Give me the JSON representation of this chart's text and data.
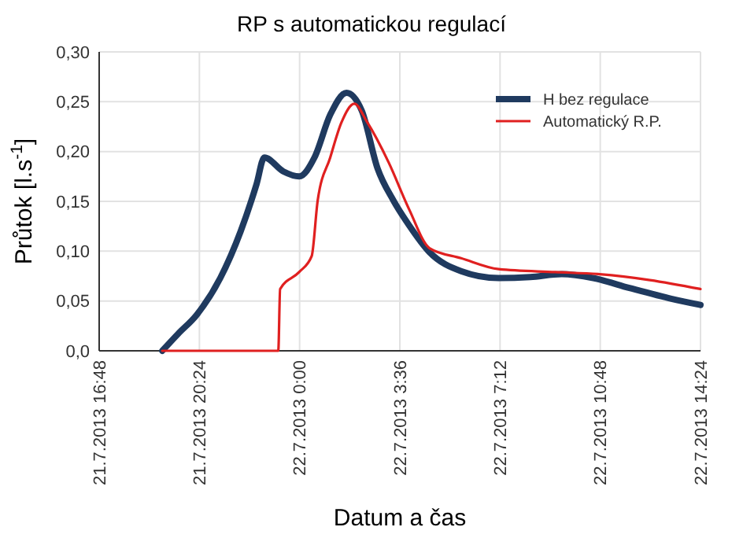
{
  "chart_data": {
    "type": "line",
    "title": "RP s automatickou regulací",
    "xlabel": "Datum a čas",
    "ylabel": "Průtok [l.s$^{-1}$]",
    "xlim": [
      "2013-07-21T16:48",
      "2013-07-22T14:24"
    ],
    "xticks": [
      {
        "value": "2013-07-21T16:48",
        "label": "21.7.2013 16:48"
      },
      {
        "value": "2013-07-21T20:24",
        "label": "21.7.2013 20:24"
      },
      {
        "value": "2013-07-22T00:00",
        "label": "22.7.2013 0:00"
      },
      {
        "value": "2013-07-22T03:36",
        "label": "22.7.2013 3:36"
      },
      {
        "value": "2013-07-22T07:12",
        "label": "22.7.2013 7:12"
      },
      {
        "value": "2013-07-22T10:48",
        "label": "22.7.2013 10:48"
      },
      {
        "value": "2013-07-22T14:24",
        "label": "22.7.2013 14:24"
      }
    ],
    "ylim": [
      0,
      0.3
    ],
    "yticks": [
      {
        "value": 0,
        "label": "0,0"
      },
      {
        "value": 0.05,
        "label": "0,05"
      },
      {
        "value": 0.1,
        "label": "0,10"
      },
      {
        "value": 0.15,
        "label": "0,15"
      },
      {
        "value": 0.2,
        "label": "0,20"
      },
      {
        "value": 0.25,
        "label": "0,25"
      },
      {
        "value": 0.3,
        "label": "0,30"
      }
    ],
    "grid": true,
    "legend": "top right",
    "line_style": "solid",
    "series": [
      {
        "name": "H bez regulace",
        "color": "#1f3a5f",
        "x": [
          "2013-07-21T19:04",
          "2013-07-21T19:38",
          "2013-07-21T20:18",
          "2013-07-21T21:09",
          "2013-07-21T21:53",
          "2013-07-21T22:27",
          "2013-07-21T22:44",
          "2013-07-21T23:25",
          "2013-07-21T23:59",
          "2013-07-22T00:32",
          "2013-07-22T01:06",
          "2013-07-22T01:41",
          "2013-07-22T02:14",
          "2013-07-22T02:48",
          "2013-07-22T03:22",
          "2013-07-22T03:56",
          "2013-07-22T04:40",
          "2013-07-22T05:48",
          "2013-07-22T07:09",
          "2013-07-22T08:17",
          "2013-07-22T09:25",
          "2013-07-22T10:33",
          "2013-07-22T11:51",
          "2013-07-22T13:23",
          "2013-07-22T14:24"
        ],
        "values": [
          0,
          0.017,
          0.036,
          0.073,
          0.12,
          0.167,
          0.194,
          0.18,
          0.175,
          0.194,
          0.237,
          0.259,
          0.241,
          0.183,
          0.151,
          0.126,
          0.099,
          0.08,
          0.073,
          0.074,
          0.077,
          0.073,
          0.063,
          0.052,
          0.046
        ]
      },
      {
        "name": "Automatický R.P.",
        "color": "#e02020",
        "x": [
          "2013-07-21T19:04",
          "2013-07-21T23:14",
          "2013-07-21T23:18",
          "2013-07-21T23:59",
          "2013-07-22T00:26",
          "2013-07-22T00:39",
          "2013-07-22T01:06",
          "2013-07-22T01:30",
          "2013-07-22T01:58",
          "2013-07-22T02:25",
          "2013-07-22T03:12",
          "2013-07-22T03:56",
          "2013-07-22T04:40",
          "2013-07-22T05:48",
          "2013-07-22T07:09",
          "2013-07-22T09:11",
          "2013-07-22T10:43",
          "2013-07-22T12:35",
          "2013-07-22T14:24"
        ],
        "values": [
          0,
          0,
          0.062,
          0.079,
          0.095,
          0.151,
          0.194,
          0.229,
          0.248,
          0.23,
          0.189,
          0.142,
          0.103,
          0.093,
          0.082,
          0.079,
          0.077,
          0.071,
          0.062
        ]
      }
    ]
  }
}
